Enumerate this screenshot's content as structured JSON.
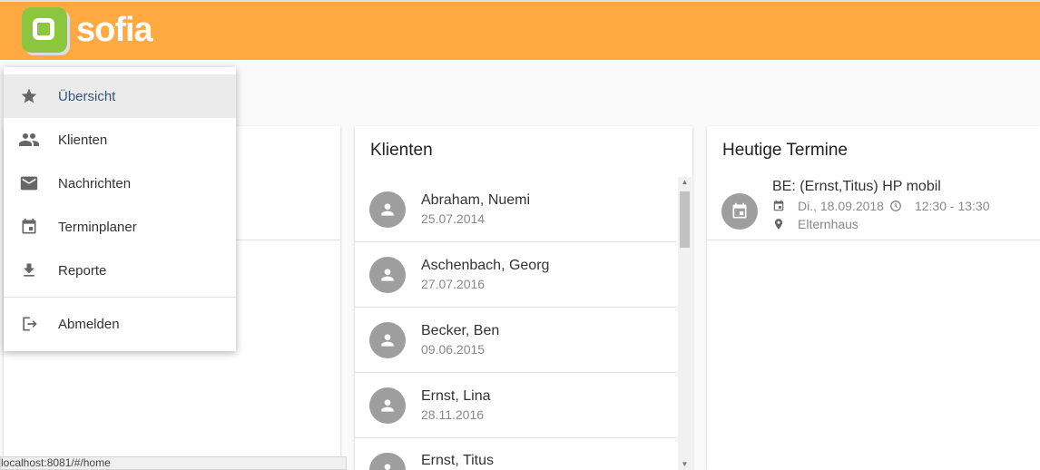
{
  "app": {
    "name": "sofia",
    "brand_color": "#ffa940"
  },
  "menu": {
    "items": [
      {
        "label": "Übersicht",
        "icon": "star-icon",
        "active": true
      },
      {
        "label": "Klienten",
        "icon": "people-icon"
      },
      {
        "label": "Nachrichten",
        "icon": "mail-icon"
      },
      {
        "label": "Terminplaner",
        "icon": "calendar-icon"
      },
      {
        "label": "Reporte",
        "icon": "download-icon"
      }
    ],
    "logout": {
      "label": "Abmelden",
      "icon": "logout-icon"
    }
  },
  "clients": {
    "title": "Klienten",
    "items": [
      {
        "name": "Abraham, Nuemi",
        "date": "25.07.2014"
      },
      {
        "name": "Aschenbach, Georg",
        "date": "27.07.2016"
      },
      {
        "name": "Becker, Ben",
        "date": "09.06.2015"
      },
      {
        "name": "Ernst, Lina",
        "date": "28.11.2016"
      },
      {
        "name": "Ernst, Titus",
        "date": ""
      }
    ]
  },
  "appointments": {
    "title": "Heutige Termine",
    "items": [
      {
        "title": "BE: (Ernst,Titus) HP mobil",
        "date": "Di., 18.09.2018",
        "time": "12:30 - 13:30",
        "location": "Elternhaus"
      }
    ]
  },
  "status_bar": {
    "url": "localhost:8081/#/home"
  }
}
